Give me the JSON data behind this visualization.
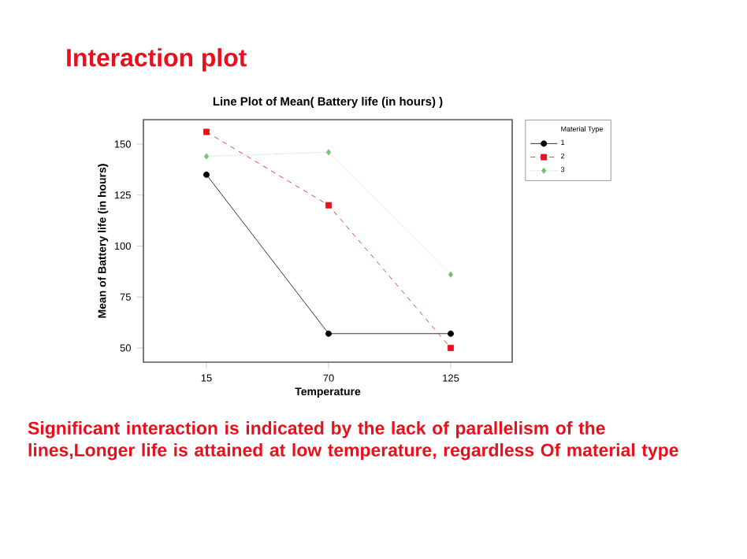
{
  "chart_data": {
    "type": "line",
    "title": "Interaction plot",
    "subtitle": "Line Plot of Mean( Battery life (in hours) )",
    "xlabel": "Temperature",
    "ylabel": "Mean of Battery life (in hours)",
    "legend_title": "Material Type",
    "legend": "right",
    "categories": [
      "15",
      "70",
      "125"
    ],
    "ylim": [
      43,
      162
    ],
    "yticks": [
      50,
      75,
      100,
      125,
      150
    ],
    "series": [
      {
        "name": "1",
        "color": "#000000",
        "values": [
          135,
          57,
          57
        ],
        "marker": "circle",
        "line_style": "solid"
      },
      {
        "name": "2",
        "color": "#e8101c",
        "values": [
          156,
          120,
          50
        ],
        "marker": "square",
        "line_style": "dashed"
      },
      {
        "name": "3",
        "color": "#70c470",
        "values": [
          144,
          146,
          86
        ],
        "marker": "diamond",
        "line_style": "dotted"
      }
    ],
    "annotations": [
      "Significant interaction is indicated by the lack of parallelism of the lines,Longer life is attained at low temperature, regardless Of material type"
    ]
  }
}
